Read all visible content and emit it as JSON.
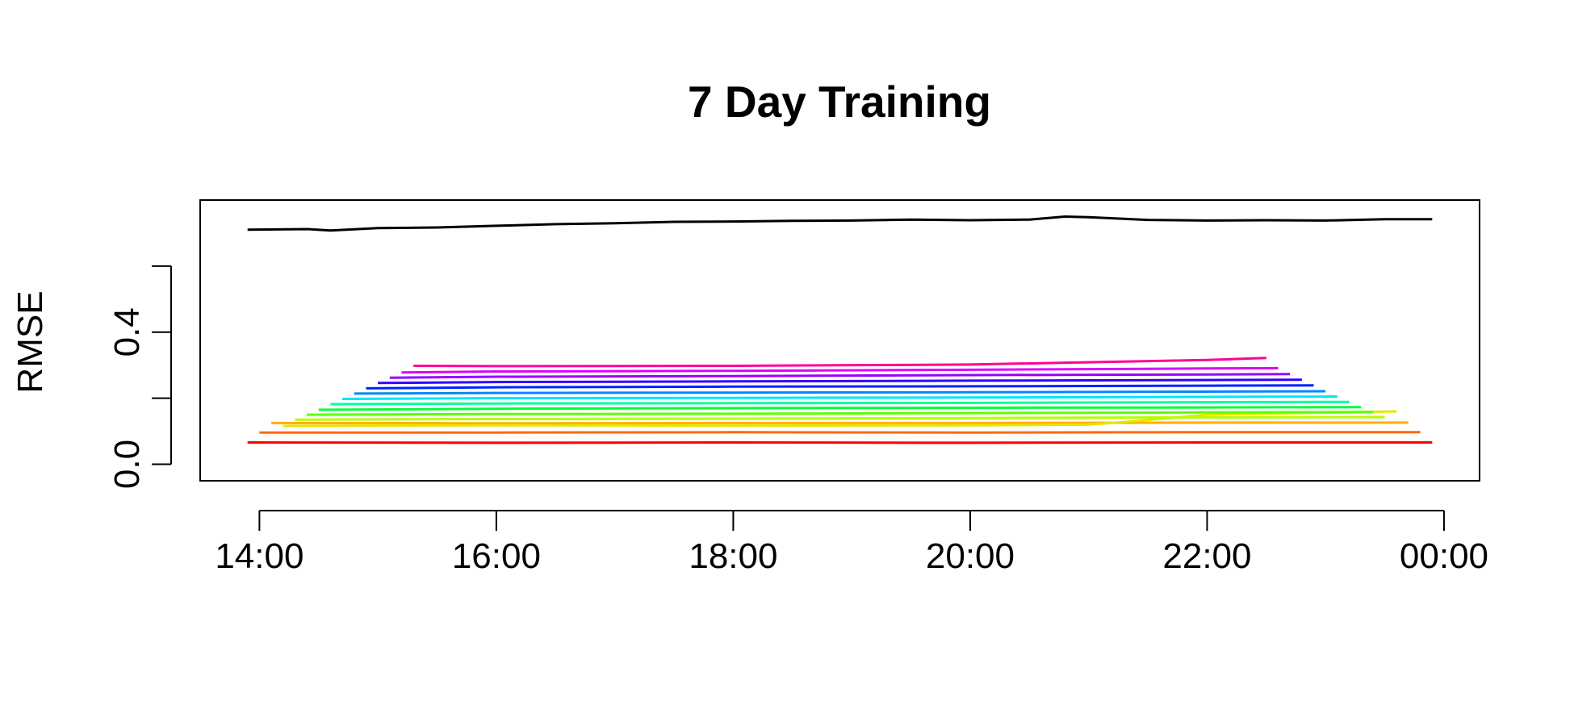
{
  "chart_data": {
    "type": "line",
    "title": "7 Day Training",
    "xlabel": "",
    "ylabel": "RMSE",
    "x_ticks": [
      "14:00",
      "16:00",
      "18:00",
      "20:00",
      "22:00",
      "00:00"
    ],
    "x_tick_hours": [
      14,
      16,
      18,
      20,
      22,
      24
    ],
    "xlim_hours": [
      13.5,
      24.3
    ],
    "y_ticks": [
      "0.0",
      "0.4"
    ],
    "y_tick_values": [
      0.0,
      0.4
    ],
    "y_minor_ticks": [
      0.2,
      0.6
    ],
    "ylim": [
      -0.05,
      0.8
    ],
    "grid": false,
    "legend": "none",
    "series": [
      {
        "color": "#000000",
        "x_hours": [
          13.9,
          14.4,
          14.6,
          15.0,
          15.5,
          16.0,
          16.5,
          17.0,
          17.5,
          18.0,
          18.5,
          19.0,
          19.5,
          20.0,
          20.5,
          20.8,
          21.0,
          21.5,
          22.0,
          22.5,
          23.0,
          23.5,
          23.9
        ],
        "y": [
          0.71,
          0.712,
          0.708,
          0.715,
          0.717,
          0.722,
          0.727,
          0.73,
          0.734,
          0.735,
          0.737,
          0.738,
          0.741,
          0.739,
          0.741,
          0.75,
          0.748,
          0.74,
          0.738,
          0.739,
          0.738,
          0.742,
          0.742
        ]
      },
      {
        "color": "#FF0000",
        "x_hours": [
          13.9,
          16.0,
          18.0,
          20.0,
          22.0,
          23.9
        ],
        "y": [
          0.066,
          0.065,
          0.066,
          0.065,
          0.066,
          0.066
        ]
      },
      {
        "color": "#FF6A00",
        "x_hours": [
          14.0,
          16.0,
          18.0,
          20.0,
          22.0,
          23.8
        ],
        "y": [
          0.096,
          0.096,
          0.097,
          0.096,
          0.097,
          0.097
        ]
      },
      {
        "color": "#FFB000",
        "x_hours": [
          14.1,
          16.0,
          18.0,
          20.0,
          22.0,
          23.7
        ],
        "y": [
          0.125,
          0.124,
          0.125,
          0.125,
          0.126,
          0.126
        ]
      },
      {
        "color": "#E6E600",
        "x_hours": [
          14.2,
          16.0,
          18.0,
          20.0,
          21.0,
          21.3,
          22.0,
          23.6
        ],
        "y": [
          0.116,
          0.118,
          0.117,
          0.118,
          0.12,
          0.128,
          0.15,
          0.16
        ]
      },
      {
        "color": "#B5FF00",
        "x_hours": [
          14.3,
          16.0,
          18.0,
          20.0,
          22.0,
          23.5
        ],
        "y": [
          0.135,
          0.137,
          0.138,
          0.14,
          0.142,
          0.143
        ]
      },
      {
        "color": "#5CFF00",
        "x_hours": [
          14.4,
          16.0,
          18.0,
          20.0,
          22.0,
          23.4
        ],
        "y": [
          0.15,
          0.152,
          0.153,
          0.155,
          0.157,
          0.158
        ]
      },
      {
        "color": "#00FF33",
        "x_hours": [
          14.5,
          16.0,
          18.0,
          20.0,
          22.0,
          23.3
        ],
        "y": [
          0.165,
          0.168,
          0.17,
          0.171,
          0.172,
          0.173
        ]
      },
      {
        "color": "#00FFA0",
        "x_hours": [
          14.6,
          16.0,
          18.0,
          20.0,
          22.0,
          23.2
        ],
        "y": [
          0.182,
          0.184,
          0.185,
          0.186,
          0.188,
          0.189
        ]
      },
      {
        "color": "#00E5FF",
        "x_hours": [
          14.7,
          16.0,
          18.0,
          20.0,
          22.0,
          23.1
        ],
        "y": [
          0.198,
          0.2,
          0.201,
          0.202,
          0.204,
          0.205
        ]
      },
      {
        "color": "#0088FF",
        "x_hours": [
          14.8,
          16.0,
          18.0,
          20.0,
          22.0,
          23.0
        ],
        "y": [
          0.214,
          0.216,
          0.217,
          0.218,
          0.22,
          0.221
        ]
      },
      {
        "color": "#0022FF",
        "x_hours": [
          14.9,
          16.0,
          18.0,
          20.0,
          22.0,
          22.9
        ],
        "y": [
          0.23,
          0.233,
          0.235,
          0.236,
          0.238,
          0.239
        ]
      },
      {
        "color": "#3300FF",
        "x_hours": [
          15.0,
          16.0,
          18.0,
          20.0,
          22.0,
          22.8
        ],
        "y": [
          0.246,
          0.249,
          0.251,
          0.253,
          0.255,
          0.256
        ]
      },
      {
        "color": "#9900FF",
        "x_hours": [
          15.1,
          16.0,
          18.0,
          20.0,
          22.0,
          22.7
        ],
        "y": [
          0.262,
          0.265,
          0.267,
          0.27,
          0.272,
          0.273
        ]
      },
      {
        "color": "#DD00FF",
        "x_hours": [
          15.2,
          16.0,
          18.0,
          20.0,
          22.0,
          22.6
        ],
        "y": [
          0.278,
          0.281,
          0.283,
          0.286,
          0.29,
          0.291
        ]
      },
      {
        "color": "#FF0099",
        "x_hours": [
          15.3,
          16.0,
          18.0,
          20.0,
          22.0,
          22.5
        ],
        "y": [
          0.298,
          0.297,
          0.298,
          0.302,
          0.316,
          0.322
        ]
      }
    ]
  }
}
